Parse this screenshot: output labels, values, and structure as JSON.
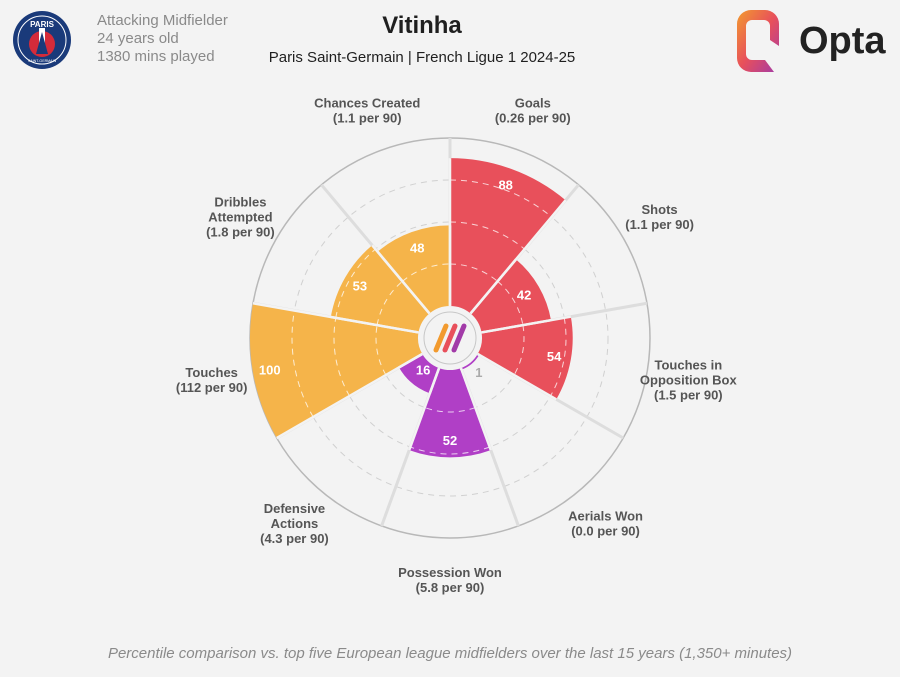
{
  "player": {
    "name": "Vitinha",
    "position": "Attacking Midfielder",
    "age": "24 years old",
    "minutes": "1380 mins played",
    "club_competition": "Paris Saint-Germain | French Ligue 1 2024-25"
  },
  "brand": {
    "club_text_top": "PARIS",
    "club_text_bottom": "SAINT-GERMAIN",
    "opta_wordmark": "Opta"
  },
  "footer": "Percentile comparison vs. top five European league midfielders over the last 15 years (1,350+ minutes)",
  "colors": {
    "attacking": "#e8505b",
    "possession": "#f5b44a",
    "defending": "#b03fc6",
    "background": "#f3f3f3",
    "rings": "#c7c7c7",
    "club_navy": "#1a3a7a",
    "club_red": "#d52b3a"
  },
  "chart_data": {
    "type": "polar-bar",
    "scale": [
      0,
      100
    ],
    "metrics": [
      {
        "name_lines": [
          "Goals",
          "(0.26 per 90)"
        ],
        "value": 88,
        "group": "attacking"
      },
      {
        "name_lines": [
          "Shots",
          "(1.1 per 90)"
        ],
        "value": 42,
        "group": "attacking"
      },
      {
        "name_lines": [
          "Touches in",
          "Opposition Box",
          "(1.5 per 90)"
        ],
        "value": 54,
        "group": "attacking"
      },
      {
        "name_lines": [
          "Aerials Won",
          "(0.0 per 90)"
        ],
        "value": 1,
        "group": "defending"
      },
      {
        "name_lines": [
          "Possession Won",
          "(5.8 per 90)"
        ],
        "value": 52,
        "group": "defending"
      },
      {
        "name_lines": [
          "Defensive",
          "Actions",
          "(4.3 per 90)"
        ],
        "value": 16,
        "group": "defending"
      },
      {
        "name_lines": [
          "Touches",
          "(112 per 90)"
        ],
        "value": 100,
        "group": "possession"
      },
      {
        "name_lines": [
          "Dribbles",
          "Attempted",
          "(1.8 per 90)"
        ],
        "value": 53,
        "group": "possession"
      },
      {
        "name_lines": [
          "Chances Created",
          "(1.1 per 90)"
        ],
        "value": 48,
        "group": "possession"
      }
    ]
  }
}
